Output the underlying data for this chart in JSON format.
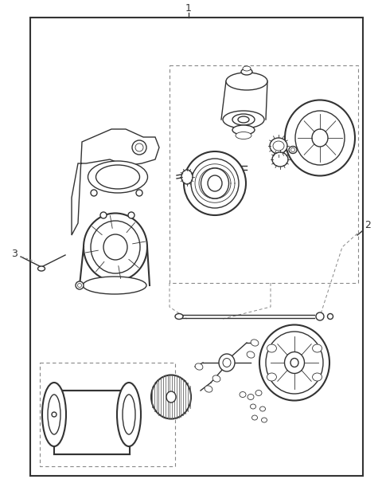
{
  "fig_width": 4.8,
  "fig_height": 6.11,
  "dpi": 100,
  "bg_color": "#ffffff",
  "lc": "#333333",
  "lc_thin": "#666666",
  "lw_main": 1.0,
  "lw_thick": 1.5,
  "lw_thin": 0.6,
  "dash_color": "#888888",
  "label_1": "1",
  "label_2": "2",
  "label_3": "3",
  "label_fs": 9
}
